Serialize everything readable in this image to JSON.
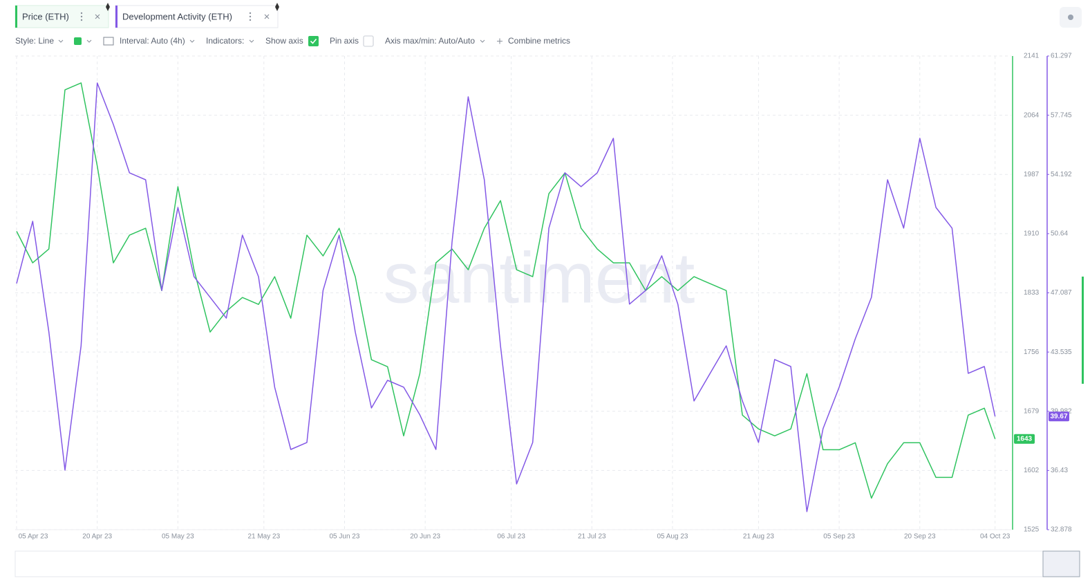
{
  "tabs": [
    "Price (ETH)",
    "Development Activity (ETH)"
  ],
  "toolbar": {
    "style": "Style: Line",
    "interval": "Interval: Auto (4h)",
    "indicators": "Indicators:",
    "show_axis": "Show axis",
    "pin_axis": "Pin axis",
    "axis_minmax": "Axis max/min: Auto/Auto",
    "combine": "Combine metrics"
  },
  "watermark": "santiment",
  "chart_data": {
    "type": "line",
    "x": [
      "2023-04-05",
      "2023-04-08",
      "2023-04-11",
      "2023-04-14",
      "2023-04-17",
      "2023-04-20",
      "2023-04-23",
      "2023-04-26",
      "2023-04-29",
      "2023-05-02",
      "2023-05-05",
      "2023-05-08",
      "2023-05-11",
      "2023-05-14",
      "2023-05-17",
      "2023-05-20",
      "2023-05-23",
      "2023-05-26",
      "2023-05-29",
      "2023-06-01",
      "2023-06-04",
      "2023-06-07",
      "2023-06-10",
      "2023-06-13",
      "2023-06-16",
      "2023-06-19",
      "2023-06-22",
      "2023-06-25",
      "2023-06-28",
      "2023-07-01",
      "2023-07-04",
      "2023-07-07",
      "2023-07-10",
      "2023-07-13",
      "2023-07-16",
      "2023-07-19",
      "2023-07-22",
      "2023-07-25",
      "2023-07-28",
      "2023-07-31",
      "2023-08-03",
      "2023-08-06",
      "2023-08-09",
      "2023-08-12",
      "2023-08-15",
      "2023-08-18",
      "2023-08-21",
      "2023-08-24",
      "2023-08-27",
      "2023-08-30",
      "2023-09-02",
      "2023-09-05",
      "2023-09-08",
      "2023-09-11",
      "2023-09-14",
      "2023-09-17",
      "2023-09-20",
      "2023-09-23",
      "2023-09-26",
      "2023-09-29",
      "2023-10-02",
      "2023-10-04"
    ],
    "xlim": [
      "2023-04-05",
      "2023-10-07"
    ],
    "xticks": [
      {
        "value": "2023-04-05",
        "label": "05 Apr 23"
      },
      {
        "value": "2023-04-20",
        "label": "20 Apr 23"
      },
      {
        "value": "2023-05-05",
        "label": "05 May 23"
      },
      {
        "value": "2023-05-21",
        "label": "21 May 23"
      },
      {
        "value": "2023-06-05",
        "label": "05 Jun 23"
      },
      {
        "value": "2023-06-20",
        "label": "20 Jun 23"
      },
      {
        "value": "2023-07-06",
        "label": "06 Jul 23"
      },
      {
        "value": "2023-07-21",
        "label": "21 Jul 23"
      },
      {
        "value": "2023-08-05",
        "label": "05 Aug 23"
      },
      {
        "value": "2023-08-21",
        "label": "21 Aug 23"
      },
      {
        "value": "2023-09-05",
        "label": "05 Sep 23"
      },
      {
        "value": "2023-09-20",
        "label": "20 Sep 23"
      },
      {
        "value": "2023-10-04",
        "label": "04 Oct 23"
      }
    ],
    "ylim": [
      1525,
      2141
    ],
    "yticks": [
      2141,
      2064,
      1987,
      1910,
      1833,
      1756,
      1679,
      1602,
      1525
    ],
    "y2lim": [
      32.878,
      61.297
    ],
    "y2ticks": [
      61.297,
      57.745,
      54.192,
      50.64,
      47.087,
      43.535,
      39.982,
      36.43,
      32.878
    ],
    "grid": true,
    "series": [
      {
        "name": "Price (ETH)",
        "color": "#2fc35f",
        "values": [
          1913,
          1872,
          1890,
          2097,
          2106,
          1998,
          1872,
          1908,
          1917,
          1836,
          1971,
          1863,
          1782,
          1809,
          1827,
          1818,
          1854,
          1800,
          1908,
          1881,
          1917,
          1854,
          1746,
          1737,
          1647,
          1728,
          1872,
          1890,
          1863,
          1917,
          1953,
          1863,
          1854,
          1962,
          1989,
          1917,
          1890,
          1872,
          1872,
          1836,
          1854,
          1836,
          1854,
          1845,
          1836,
          1674,
          1656,
          1647,
          1656,
          1728,
          1629,
          1629,
          1638,
          1566,
          1611,
          1638,
          1638,
          1593,
          1593,
          1674,
          1683,
          1643
        ]
      },
      {
        "name": "Development Activity (ETH)",
        "color": "#8358e6",
        "axis": "y2",
        "values": [
          47.65,
          51.38,
          44.74,
          36.45,
          43.91,
          59.68,
          57.19,
          54.29,
          53.87,
          47.23,
          52.21,
          48.06,
          46.82,
          45.57,
          50.55,
          48.06,
          41.43,
          37.69,
          38.11,
          47.23,
          50.55,
          44.74,
          40.18,
          41.84,
          41.43,
          39.77,
          37.69,
          50.14,
          58.85,
          53.87,
          43.91,
          35.62,
          38.11,
          50.97,
          54.29,
          53.46,
          54.29,
          56.36,
          46.41,
          47.23,
          49.31,
          46.41,
          40.6,
          42.26,
          43.91,
          40.6,
          38.11,
          43.09,
          42.67,
          33.96,
          38.94,
          41.43,
          44.33,
          46.82,
          53.87,
          50.97,
          56.36,
          52.21,
          50.97,
          42.26,
          42.67,
          39.67
        ]
      }
    ]
  }
}
